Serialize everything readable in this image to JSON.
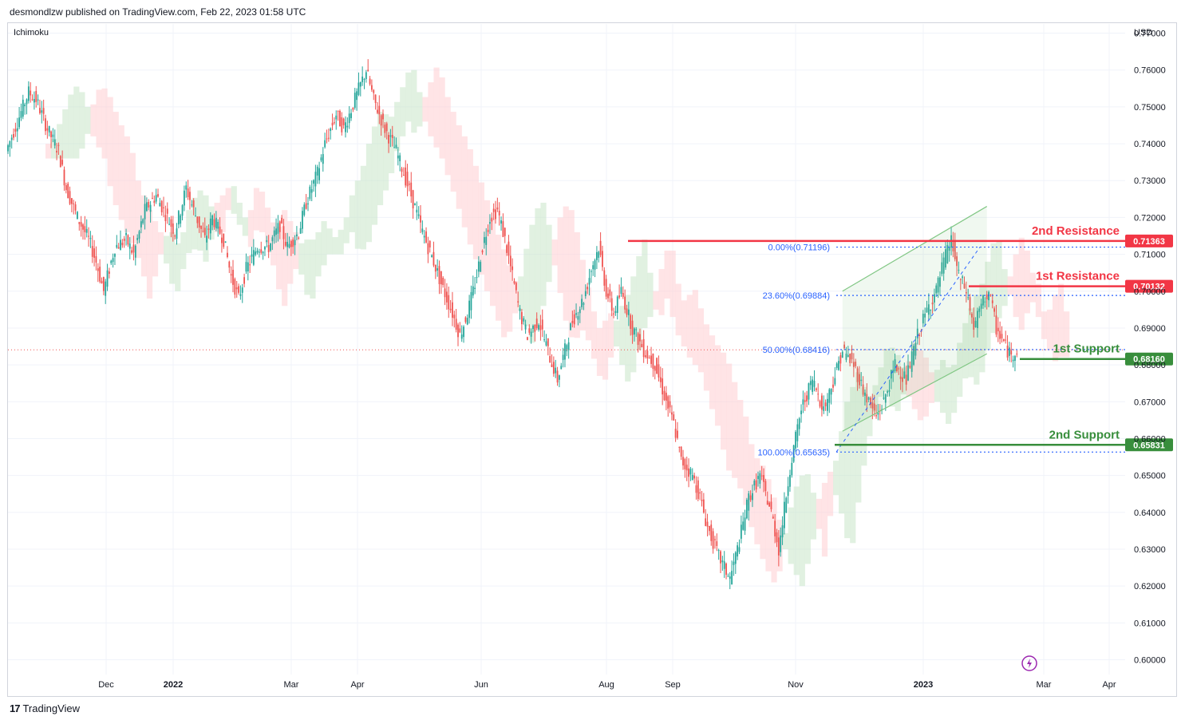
{
  "header": {
    "publisher_line": "desmondlzw published on TradingView.com, Feb 22, 2023 01:58 UTC"
  },
  "indicator": "Ichimoku",
  "footer": {
    "brand": "TradingView",
    "logo_glyph": "17"
  },
  "colors": {
    "up": "#26a69a",
    "down": "#ef5350",
    "resistance": "#f23645",
    "support": "#388e3c",
    "fib": "#2962ff",
    "channel": "#81c784",
    "cloud_bull": "#c8e6c9",
    "cloud_bear": "#ffcdd2"
  },
  "chart_data": {
    "type": "candlestick",
    "currency": "USD",
    "y_axis": {
      "ylim": [
        0.596,
        0.7725
      ],
      "ticks": [
        0.77,
        0.76,
        0.75,
        0.74,
        0.73,
        0.72,
        0.71,
        0.7,
        0.69,
        0.68,
        0.67,
        0.66,
        0.65,
        0.64,
        0.63,
        0.62,
        0.61,
        0.6
      ]
    },
    "x_axis": {
      "ticks": [
        "Dec",
        "2022",
        "Mar",
        "Apr",
        "Jun",
        "Aug",
        "Sep",
        "Nov",
        "2023",
        "Mar",
        "Apr"
      ],
      "bold_ticks": [
        "2022",
        "2023"
      ]
    },
    "levels": [
      {
        "name": "2nd Resistance",
        "value": 0.71363,
        "label": "0.71363",
        "kind": "resistance"
      },
      {
        "name": "1st Resistance",
        "value": 0.70132,
        "label": "0.70132",
        "kind": "resistance"
      },
      {
        "name": "1st Support",
        "value": 0.6816,
        "label": "0.68160",
        "kind": "support"
      },
      {
        "name": "2nd Support",
        "value": 0.65831,
        "label": "0.65831",
        "kind": "support"
      }
    ],
    "fibonacci": [
      {
        "ratio": "0.00%",
        "price": 0.71196,
        "label": "0.00%(0.71196)"
      },
      {
        "ratio": "23.60%",
        "price": 0.69884,
        "label": "23.60%(0.69884)"
      },
      {
        "ratio": "50.00%",
        "price": 0.68416,
        "label": "50.00%(0.68416)"
      },
      {
        "ratio": "100.00%",
        "price": 0.65635,
        "label": "100.00%(0.65635)"
      }
    ],
    "last_price": 0.6841,
    "candle_path": [
      [
        0,
        0.738
      ],
      [
        6,
        0.746
      ],
      [
        12,
        0.754
      ],
      [
        16,
        0.752
      ],
      [
        22,
        0.744
      ],
      [
        28,
        0.738
      ],
      [
        32,
        0.728
      ],
      [
        38,
        0.72
      ],
      [
        44,
        0.714
      ],
      [
        48,
        0.708
      ],
      [
        52,
        0.7
      ],
      [
        58,
        0.712
      ],
      [
        64,
        0.714
      ],
      [
        68,
        0.71
      ],
      [
        74,
        0.722
      ],
      [
        80,
        0.726
      ],
      [
        86,
        0.72
      ],
      [
        90,
        0.716
      ],
      [
        96,
        0.728
      ],
      [
        100,
        0.722
      ],
      [
        106,
        0.714
      ],
      [
        110,
        0.72
      ],
      [
        116,
        0.714
      ],
      [
        120,
        0.704
      ],
      [
        124,
        0.698
      ],
      [
        128,
        0.706
      ],
      [
        134,
        0.712
      ],
      [
        140,
        0.712
      ],
      [
        146,
        0.718
      ],
      [
        150,
        0.712
      ],
      [
        156,
        0.716
      ],
      [
        160,
        0.724
      ],
      [
        166,
        0.732
      ],
      [
        170,
        0.74
      ],
      [
        176,
        0.748
      ],
      [
        180,
        0.744
      ],
      [
        186,
        0.752
      ],
      [
        192,
        0.76
      ],
      [
        196,
        0.752
      ],
      [
        202,
        0.744
      ],
      [
        208,
        0.738
      ],
      [
        212,
        0.732
      ],
      [
        216,
        0.726
      ],
      [
        222,
        0.716
      ],
      [
        228,
        0.708
      ],
      [
        232,
        0.702
      ],
      [
        238,
        0.694
      ],
      [
        242,
        0.688
      ],
      [
        246,
        0.694
      ],
      [
        250,
        0.702
      ],
      [
        254,
        0.712
      ],
      [
        258,
        0.72
      ],
      [
        262,
        0.722
      ],
      [
        266,
        0.714
      ],
      [
        270,
        0.704
      ],
      [
        274,
        0.694
      ],
      [
        278,
        0.688
      ],
      [
        284,
        0.692
      ],
      [
        290,
        0.682
      ],
      [
        294,
        0.676
      ],
      [
        298,
        0.684
      ],
      [
        302,
        0.692
      ],
      [
        308,
        0.698
      ],
      [
        312,
        0.706
      ],
      [
        316,
        0.712
      ],
      [
        320,
        0.7
      ],
      [
        324,
        0.694
      ],
      [
        328,
        0.7
      ],
      [
        334,
        0.69
      ],
      [
        340,
        0.684
      ],
      [
        346,
        0.68
      ],
      [
        352,
        0.67
      ],
      [
        356,
        0.664
      ],
      [
        360,
        0.654
      ],
      [
        366,
        0.65
      ],
      [
        370,
        0.644
      ],
      [
        374,
        0.636
      ],
      [
        380,
        0.628
      ],
      [
        386,
        0.622
      ],
      [
        390,
        0.63
      ],
      [
        396,
        0.644
      ],
      [
        402,
        0.65
      ],
      [
        408,
        0.64
      ],
      [
        412,
        0.63
      ],
      [
        418,
        0.652
      ],
      [
        424,
        0.668
      ],
      [
        430,
        0.676
      ],
      [
        436,
        0.668
      ],
      [
        440,
        0.674
      ],
      [
        446,
        0.684
      ],
      [
        452,
        0.68
      ],
      [
        458,
        0.672
      ],
      [
        464,
        0.666
      ],
      [
        468,
        0.67
      ],
      [
        474,
        0.68
      ],
      [
        480,
        0.676
      ],
      [
        486,
        0.688
      ],
      [
        492,
        0.696
      ],
      [
        496,
        0.7
      ],
      [
        500,
        0.708
      ],
      [
        504,
        0.714
      ],
      [
        508,
        0.704
      ],
      [
        512,
        0.7
      ],
      [
        516,
        0.69
      ],
      [
        520,
        0.696
      ],
      [
        524,
        0.7
      ],
      [
        528,
        0.69
      ],
      [
        532,
        0.686
      ],
      [
        536,
        0.682
      ],
      [
        538,
        0.6841
      ]
    ],
    "channel": {
      "upper": [
        [
          0.7,
          445
        ],
        [
          0.723,
          522
        ]
      ],
      "lower": [
        [
          0.662,
          445
        ],
        [
          0.683,
          522
        ]
      ]
    }
  }
}
